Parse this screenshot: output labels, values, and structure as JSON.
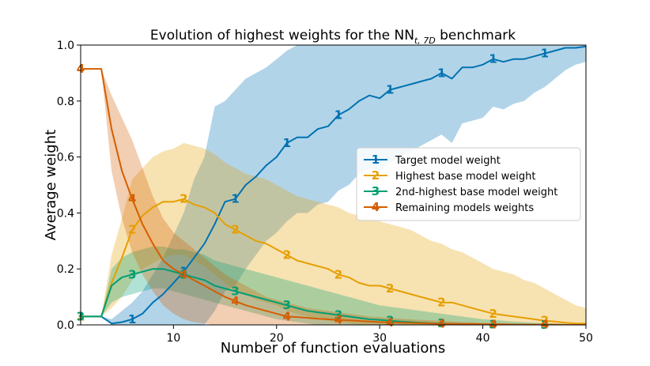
{
  "chart_data": {
    "type": "line",
    "title": {
      "prefix": "Evolution of highest weights for the NN",
      "subscript": "t, 7D",
      "suffix": " benchmark"
    },
    "xlabel": "Number of function evaluations",
    "ylabel": "Average weight",
    "xlim": [
      1,
      50
    ],
    "ylim": [
      0,
      1.0
    ],
    "xticks": [
      10,
      20,
      30,
      40,
      50
    ],
    "yticks": [
      0.0,
      0.2,
      0.4,
      0.6,
      0.8,
      1.0
    ],
    "xtick_labels": [
      "10",
      "20",
      "30",
      "40",
      "50"
    ],
    "ytick_labels": [
      "0.0",
      "0.2",
      "0.4",
      "0.6",
      "0.8",
      "1.0"
    ],
    "legend_position": "center-right",
    "marker_every": 5,
    "marker_start": 1,
    "x": [
      1,
      2,
      3,
      4,
      5,
      6,
      7,
      8,
      9,
      10,
      11,
      12,
      13,
      14,
      15,
      16,
      17,
      18,
      19,
      20,
      21,
      22,
      23,
      24,
      25,
      26,
      27,
      28,
      29,
      30,
      31,
      32,
      33,
      34,
      35,
      36,
      37,
      38,
      39,
      40,
      41,
      42,
      43,
      44,
      45,
      46,
      47,
      48,
      49,
      50
    ],
    "series": [
      {
        "name": "Target model weight",
        "marker": "1",
        "color": "#0072b2",
        "values": [
          0.03,
          0.03,
          0.03,
          0.005,
          0.01,
          0.02,
          0.04,
          0.08,
          0.11,
          0.15,
          0.19,
          0.24,
          0.29,
          0.36,
          0.44,
          0.45,
          0.5,
          0.53,
          0.57,
          0.6,
          0.65,
          0.67,
          0.67,
          0.7,
          0.71,
          0.75,
          0.77,
          0.8,
          0.82,
          0.81,
          0.84,
          0.85,
          0.86,
          0.87,
          0.88,
          0.9,
          0.88,
          0.92,
          0.92,
          0.93,
          0.95,
          0.94,
          0.95,
          0.95,
          0.96,
          0.97,
          0.98,
          0.99,
          0.99,
          0.995
        ],
        "lower": [
          0.03,
          0.03,
          0.03,
          0.0,
          0.0,
          0.0,
          0.0,
          0.0,
          0.0,
          0.0,
          0.0,
          0.0,
          0.0,
          0.05,
          0.12,
          0.14,
          0.2,
          0.25,
          0.3,
          0.33,
          0.37,
          0.4,
          0.4,
          0.43,
          0.44,
          0.48,
          0.5,
          0.54,
          0.56,
          0.55,
          0.58,
          0.6,
          0.62,
          0.64,
          0.66,
          0.68,
          0.65,
          0.72,
          0.73,
          0.74,
          0.78,
          0.77,
          0.79,
          0.8,
          0.83,
          0.85,
          0.88,
          0.91,
          0.93,
          0.94
        ],
        "upper": [
          0.03,
          0.03,
          0.03,
          0.02,
          0.05,
          0.08,
          0.12,
          0.18,
          0.24,
          0.32,
          0.4,
          0.52,
          0.6,
          0.78,
          0.8,
          0.84,
          0.88,
          0.9,
          0.92,
          0.95,
          0.98,
          1.0,
          1.0,
          1.0,
          1.0,
          1.0,
          1.0,
          1.0,
          1.0,
          1.0,
          1.0,
          1.0,
          1.0,
          1.0,
          1.0,
          1.0,
          1.0,
          1.0,
          1.0,
          1.0,
          1.0,
          1.0,
          1.0,
          1.0,
          1.0,
          1.0,
          1.0,
          1.0,
          1.0,
          1.0
        ]
      },
      {
        "name": "Highest base model weight",
        "marker": "2",
        "color": "#e69f00",
        "values": [
          0.03,
          0.03,
          0.03,
          0.15,
          0.24,
          0.34,
          0.39,
          0.42,
          0.44,
          0.44,
          0.45,
          0.43,
          0.42,
          0.4,
          0.36,
          0.34,
          0.32,
          0.3,
          0.29,
          0.27,
          0.25,
          0.23,
          0.22,
          0.21,
          0.2,
          0.18,
          0.17,
          0.15,
          0.14,
          0.14,
          0.13,
          0.12,
          0.11,
          0.1,
          0.09,
          0.08,
          0.08,
          0.07,
          0.06,
          0.05,
          0.04,
          0.035,
          0.03,
          0.025,
          0.02,
          0.015,
          0.012,
          0.008,
          0.005,
          0.005
        ],
        "lower": [
          0.03,
          0.03,
          0.03,
          0.06,
          0.1,
          0.16,
          0.2,
          0.22,
          0.24,
          0.25,
          0.25,
          0.23,
          0.21,
          0.18,
          0.15,
          0.12,
          0.11,
          0.09,
          0.08,
          0.07,
          0.05,
          0.04,
          0.03,
          0.02,
          0.015,
          0.01,
          0.005,
          0,
          0,
          0,
          0,
          0,
          0,
          0,
          0,
          0,
          0,
          0,
          0,
          0,
          0,
          0,
          0,
          0,
          0,
          0,
          0,
          0,
          0,
          0
        ],
        "upper": [
          0.03,
          0.03,
          0.03,
          0.25,
          0.38,
          0.52,
          0.56,
          0.6,
          0.62,
          0.63,
          0.65,
          0.64,
          0.63,
          0.61,
          0.58,
          0.56,
          0.54,
          0.53,
          0.52,
          0.5,
          0.48,
          0.46,
          0.45,
          0.44,
          0.43,
          0.42,
          0.4,
          0.39,
          0.38,
          0.37,
          0.36,
          0.35,
          0.34,
          0.32,
          0.3,
          0.29,
          0.27,
          0.26,
          0.24,
          0.22,
          0.2,
          0.19,
          0.18,
          0.16,
          0.15,
          0.13,
          0.11,
          0.09,
          0.07,
          0.06
        ]
      },
      {
        "name": "2nd-highest base model weight",
        "marker": "3",
        "color": "#009e73",
        "values": [
          0.03,
          0.03,
          0.03,
          0.14,
          0.17,
          0.18,
          0.19,
          0.2,
          0.2,
          0.19,
          0.18,
          0.17,
          0.16,
          0.14,
          0.13,
          0.12,
          0.11,
          0.1,
          0.09,
          0.08,
          0.07,
          0.06,
          0.05,
          0.045,
          0.04,
          0.035,
          0.03,
          0.025,
          0.02,
          0.018,
          0.015,
          0.012,
          0.01,
          0.008,
          0.006,
          0.005,
          0.004,
          0.003,
          0.002,
          0.002,
          0.001,
          0.001,
          0.001,
          0.001,
          0,
          0,
          0,
          0,
          0,
          0
        ],
        "lower": [
          0.03,
          0.03,
          0.03,
          0.08,
          0.1,
          0.11,
          0.12,
          0.13,
          0.13,
          0.12,
          0.11,
          0.1,
          0.09,
          0.08,
          0.07,
          0.06,
          0.05,
          0.04,
          0.03,
          0.02,
          0.015,
          0.01,
          0.005,
          0,
          0,
          0,
          0,
          0,
          0,
          0,
          0,
          0,
          0,
          0,
          0,
          0,
          0,
          0,
          0,
          0,
          0,
          0,
          0,
          0,
          0,
          0,
          0,
          0,
          0,
          0
        ],
        "upper": [
          0.03,
          0.03,
          0.03,
          0.2,
          0.24,
          0.26,
          0.27,
          0.28,
          0.28,
          0.27,
          0.27,
          0.26,
          0.25,
          0.23,
          0.22,
          0.21,
          0.2,
          0.19,
          0.18,
          0.17,
          0.16,
          0.15,
          0.14,
          0.13,
          0.12,
          0.11,
          0.1,
          0.09,
          0.08,
          0.07,
          0.065,
          0.06,
          0.055,
          0.05,
          0.045,
          0.04,
          0.035,
          0.03,
          0.025,
          0.02,
          0.018,
          0.015,
          0.012,
          0.01,
          0.008,
          0.006,
          0.005,
          0.004,
          0.003,
          0.002
        ]
      },
      {
        "name": "Remaining models weights",
        "marker": "4",
        "color": "#d55e00",
        "values": [
          0.915,
          0.915,
          0.915,
          0.7,
          0.55,
          0.45,
          0.36,
          0.29,
          0.23,
          0.2,
          0.18,
          0.16,
          0.14,
          0.12,
          0.1,
          0.085,
          0.07,
          0.06,
          0.05,
          0.04,
          0.03,
          0.028,
          0.025,
          0.022,
          0.02,
          0.018,
          0.016,
          0.014,
          0.012,
          0.01,
          0.009,
          0.008,
          0.007,
          0.006,
          0.005,
          0.004,
          0.004,
          0.003,
          0.003,
          0.002,
          0.002,
          0.002,
          0.001,
          0.001,
          0.001,
          0.001,
          0.001,
          0,
          0,
          0
        ],
        "lower": [
          0.915,
          0.915,
          0.915,
          0.55,
          0.38,
          0.26,
          0.18,
          0.12,
          0.07,
          0.04,
          0.02,
          0.01,
          0.005,
          0,
          0,
          0,
          0,
          0,
          0,
          0,
          0,
          0,
          0,
          0,
          0,
          0,
          0,
          0,
          0,
          0,
          0,
          0,
          0,
          0,
          0,
          0,
          0,
          0,
          0,
          0,
          0,
          0,
          0,
          0,
          0,
          0,
          0,
          0,
          0,
          0
        ],
        "upper": [
          0.915,
          0.915,
          0.915,
          0.82,
          0.74,
          0.66,
          0.56,
          0.46,
          0.38,
          0.33,
          0.3,
          0.27,
          0.24,
          0.21,
          0.18,
          0.16,
          0.14,
          0.12,
          0.1,
          0.09,
          0.08,
          0.07,
          0.06,
          0.055,
          0.05,
          0.045,
          0.04,
          0.035,
          0.03,
          0.028,
          0.025,
          0.022,
          0.02,
          0.018,
          0.016,
          0.014,
          0.012,
          0.01,
          0.009,
          0.008,
          0.007,
          0.006,
          0.005,
          0.004,
          0.004,
          0.003,
          0.003,
          0.002,
          0.002,
          0.002
        ]
      }
    ]
  }
}
